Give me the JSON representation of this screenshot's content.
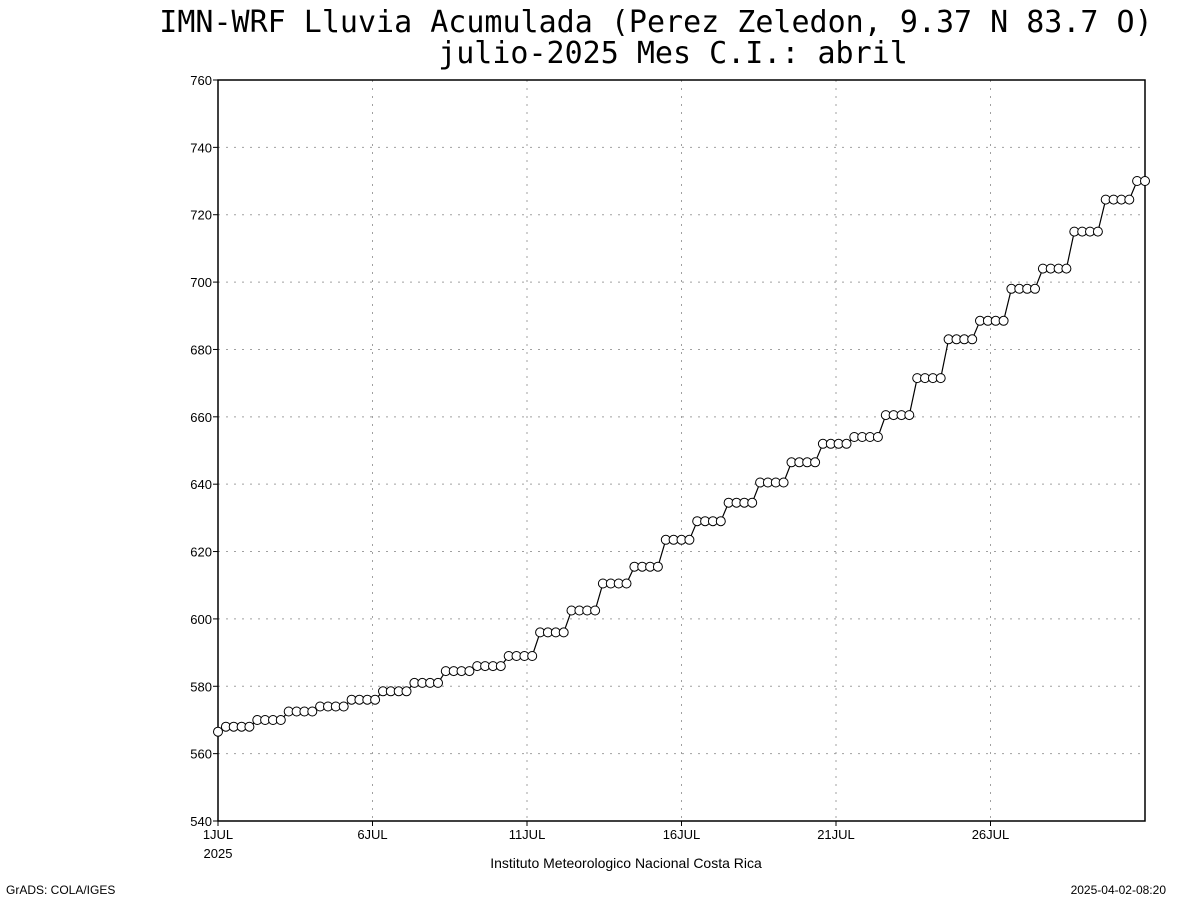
{
  "chart_data": {
    "type": "line",
    "title": "IMN-WRF  Lluvia Acumulada  (Perez Zeledon, 9.37  N 83.7  O)",
    "subtitle": "julio-2025 Mes C.I.: abril",
    "xlabel": "",
    "ylabel": "",
    "ylim": [
      540,
      760
    ],
    "y_ticks": [
      "540",
      "560",
      "580",
      "600",
      "620",
      "640",
      "660",
      "680",
      "700",
      "720",
      "740",
      "760"
    ],
    "x_ticks": [
      {
        "label": "1JUL",
        "day": 1
      },
      {
        "label": "6JUL",
        "day": 6
      },
      {
        "label": "11JUL",
        "day": 11
      },
      {
        "label": "16JUL",
        "day": 16
      },
      {
        "label": "21JUL",
        "day": 21
      },
      {
        "label": "26JUL",
        "day": 26
      }
    ],
    "x_sublabel": "2025",
    "grid": true,
    "legend": "none",
    "series": [
      {
        "points_per_day": 4,
        "daily_values": [
          568,
          570,
          572.5,
          574,
          576,
          578.5,
          581,
          584.5,
          586,
          589,
          596,
          602.5,
          610.5,
          615.5,
          623.5,
          629,
          634.5,
          640.5,
          646.5,
          652,
          654,
          660.5,
          671.5,
          683,
          688.5,
          698,
          704,
          715,
          724.5,
          730
        ],
        "values": []
      }
    ]
  },
  "footer": {
    "institution": "Instituto Meteorologico Nacional Costa Rica",
    "credit": "GrADS: COLA/IGES",
    "timestamp": "2025-04-02-08:20"
  },
  "colors": {
    "line": "#000000",
    "marker_fill": "#ffffff",
    "grid": "#a0a0a0",
    "frame": "#000000"
  }
}
